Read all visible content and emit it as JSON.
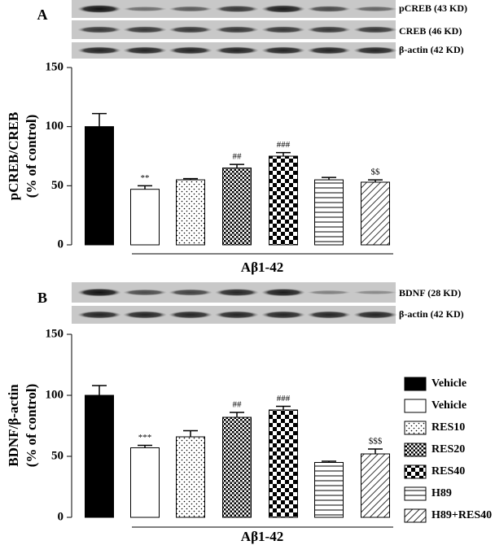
{
  "panel_labels": [
    "A",
    "B"
  ],
  "blots": [
    {
      "labels": [
        "pCREB (43 KD)",
        "CREB (46 KD)",
        "β-actin (42 KD)"
      ]
    },
    {
      "labels": [
        "BDNF (28 KD)",
        "β-actin (42 KD)"
      ]
    }
  ],
  "legend": {
    "labels": [
      "Vehicle",
      "Vehicle",
      "RES10",
      "RES20",
      "RES40",
      "H89",
      "H89+RES40"
    ],
    "patterns": [
      "solid",
      "white",
      "dots",
      "crosshatch",
      "checker",
      "hlines",
      "diagonal"
    ]
  },
  "chart_data": [
    {
      "type": "bar",
      "ylabel": [
        "pCREB/CREB",
        "(% of control)"
      ],
      "values": [
        100,
        47,
        55,
        65,
        75,
        55,
        53
      ],
      "errors": [
        11,
        3,
        1,
        3,
        3,
        2,
        2
      ],
      "annotations": [
        null,
        "**",
        null,
        "##",
        "###",
        null,
        "$$"
      ],
      "group_label": "Aβ1-42",
      "ylim": [
        0,
        150
      ],
      "yticks": [
        0,
        50,
        100,
        150
      ]
    },
    {
      "type": "bar",
      "ylabel": [
        "BDNF/β-actin",
        "(% of control)"
      ],
      "values": [
        100,
        57,
        66,
        82,
        88,
        45,
        52
      ],
      "errors": [
        8,
        2,
        5,
        4,
        3,
        1,
        4
      ],
      "annotations": [
        null,
        "***",
        null,
        "##",
        "###",
        null,
        "$$$"
      ],
      "group_label": "Aβ1-42",
      "ylim": [
        0,
        150
      ],
      "yticks": [
        0,
        50,
        100,
        150
      ]
    }
  ]
}
